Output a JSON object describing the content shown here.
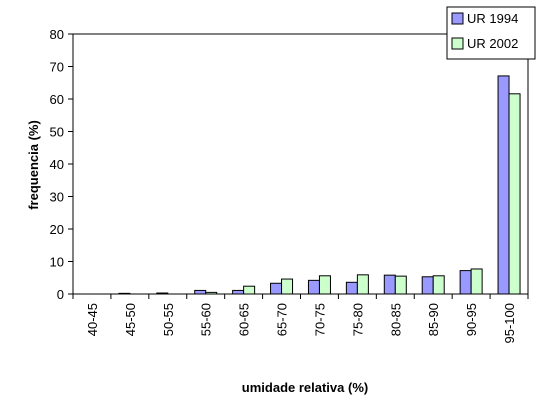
{
  "chart_data": {
    "type": "bar",
    "xlabel": "umidade relativa (%)",
    "ylabel": "frequencia (%)",
    "ylim": [
      0,
      80
    ],
    "yticks": [
      0,
      10,
      20,
      30,
      40,
      50,
      60,
      70,
      80
    ],
    "categories": [
      "40-45",
      "45-50",
      "50-55",
      "55-60",
      "60-65",
      "65-70",
      "70-75",
      "75-80",
      "80-85",
      "85-90",
      "90-95",
      "95-100"
    ],
    "series": [
      {
        "name": "UR 1994",
        "color": "#9999ff",
        "values": [
          0,
          0.2,
          0.3,
          1.1,
          1.1,
          3.3,
          4.2,
          3.6,
          5.8,
          5.3,
          7.2,
          67.1
        ]
      },
      {
        "name": "UR 2002",
        "color": "#ccffcc",
        "values": [
          0,
          0,
          0,
          0.5,
          2.4,
          4.6,
          5.6,
          5.9,
          5.5,
          5.6,
          7.7,
          61.6
        ]
      }
    ],
    "legend_position": "top-right",
    "grid": false
  }
}
